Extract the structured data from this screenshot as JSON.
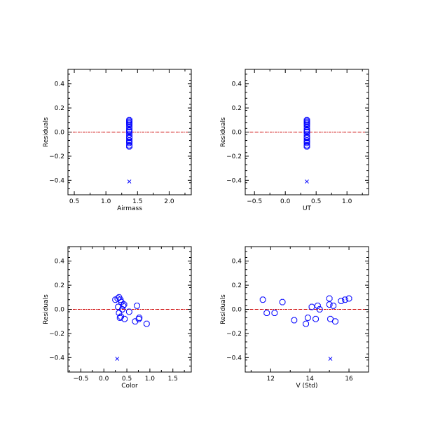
{
  "colors": {
    "marker": "#0000ff",
    "zero_line": "#cc0000",
    "axes": "#000000"
  },
  "chart_data": [
    {
      "type": "scatter",
      "xlabel": "Airmass",
      "ylabel": "Residuals",
      "xlim": [
        0.4,
        2.35
      ],
      "ylim": [
        -0.52,
        0.52
      ],
      "xticks": [
        0.5,
        1.0,
        1.5,
        2.0
      ],
      "xtick_labels": [
        "0.5",
        "1.0",
        "1.5",
        "2.0"
      ],
      "yticks": [
        -0.4,
        -0.2,
        0.0,
        0.2,
        0.4
      ],
      "ytick_labels": [
        "−0.4",
        "−0.2",
        "0.0",
        "0.2",
        "0.4"
      ],
      "zero_line": 0.0,
      "points": [
        {
          "x": 1.37,
          "y": 0.1
        },
        {
          "x": 1.37,
          "y": 0.09
        },
        {
          "x": 1.37,
          "y": 0.08
        },
        {
          "x": 1.37,
          "y": 0.07
        },
        {
          "x": 1.37,
          "y": 0.06
        },
        {
          "x": 1.37,
          "y": 0.04
        },
        {
          "x": 1.37,
          "y": 0.02
        },
        {
          "x": 1.37,
          "y": 0.01
        },
        {
          "x": 1.37,
          "y": 0.0
        },
        {
          "x": 1.37,
          "y": -0.02
        },
        {
          "x": 1.37,
          "y": -0.04
        },
        {
          "x": 1.37,
          "y": -0.05
        },
        {
          "x": 1.37,
          "y": -0.07
        },
        {
          "x": 1.37,
          "y": -0.08
        },
        {
          "x": 1.37,
          "y": -0.09
        },
        {
          "x": 1.37,
          "y": -0.11
        },
        {
          "x": 1.37,
          "y": -0.12
        }
      ],
      "outliers": [
        {
          "x": 1.37,
          "y": -0.41
        }
      ]
    },
    {
      "type": "scatter",
      "xlabel": "UT",
      "ylabel": "Residuals",
      "xlim": [
        -0.65,
        1.35
      ],
      "ylim": [
        -0.52,
        0.52
      ],
      "xticks": [
        -0.5,
        0.0,
        0.5,
        1.0
      ],
      "xtick_labels": [
        "−0.5",
        "0.0",
        "0.5",
        "1.0"
      ],
      "yticks": [
        -0.4,
        -0.2,
        0.0,
        0.2,
        0.4
      ],
      "ytick_labels": [
        "−0.4",
        "−0.2",
        "0.0",
        "0.2",
        "0.4"
      ],
      "zero_line": 0.0,
      "points": [
        {
          "x": 0.35,
          "y": 0.1
        },
        {
          "x": 0.35,
          "y": 0.09
        },
        {
          "x": 0.35,
          "y": 0.08
        },
        {
          "x": 0.35,
          "y": 0.07
        },
        {
          "x": 0.35,
          "y": 0.06
        },
        {
          "x": 0.35,
          "y": 0.04
        },
        {
          "x": 0.35,
          "y": 0.02
        },
        {
          "x": 0.35,
          "y": 0.01
        },
        {
          "x": 0.35,
          "y": 0.0
        },
        {
          "x": 0.35,
          "y": -0.02
        },
        {
          "x": 0.35,
          "y": -0.04
        },
        {
          "x": 0.35,
          "y": -0.05
        },
        {
          "x": 0.35,
          "y": -0.07
        },
        {
          "x": 0.35,
          "y": -0.08
        },
        {
          "x": 0.35,
          "y": -0.09
        },
        {
          "x": 0.35,
          "y": -0.11
        },
        {
          "x": 0.35,
          "y": -0.12
        }
      ],
      "outliers": [
        {
          "x": 0.35,
          "y": -0.41
        }
      ]
    },
    {
      "type": "scatter",
      "xlabel": "Color",
      "ylabel": "Residuals",
      "xlim": [
        -0.78,
        1.9
      ],
      "ylim": [
        -0.52,
        0.52
      ],
      "xticks": [
        -0.5,
        0.0,
        0.5,
        1.0,
        1.5
      ],
      "xtick_labels": [
        "−0.5",
        "0.0",
        "0.5",
        "1.0",
        "1.5"
      ],
      "yticks": [
        -0.4,
        -0.2,
        0.0,
        0.2,
        0.4
      ],
      "ytick_labels": [
        "−0.4",
        "−0.2",
        "0.0",
        "0.2",
        "0.4"
      ],
      "zero_line": 0.0,
      "points": [
        {
          "x": 0.25,
          "y": 0.08
        },
        {
          "x": 0.3,
          "y": 0.09
        },
        {
          "x": 0.33,
          "y": 0.1
        },
        {
          "x": 0.36,
          "y": 0.08
        },
        {
          "x": 0.38,
          "y": 0.06
        },
        {
          "x": 0.31,
          "y": 0.02
        },
        {
          "x": 0.42,
          "y": 0.03
        },
        {
          "x": 0.44,
          "y": 0.04
        },
        {
          "x": 0.33,
          "y": -0.03
        },
        {
          "x": 0.37,
          "y": -0.06
        },
        {
          "x": 0.4,
          "y": 0.0
        },
        {
          "x": 0.35,
          "y": -0.07
        },
        {
          "x": 0.45,
          "y": -0.08
        },
        {
          "x": 0.55,
          "y": -0.02
        },
        {
          "x": 0.68,
          "y": -0.1
        },
        {
          "x": 0.72,
          "y": 0.03
        },
        {
          "x": 0.76,
          "y": -0.08
        },
        {
          "x": 0.77,
          "y": -0.07
        },
        {
          "x": 0.93,
          "y": -0.12
        }
      ],
      "outliers": [
        {
          "x": 0.29,
          "y": -0.41
        }
      ]
    },
    {
      "type": "scatter",
      "xlabel": "V (Std)",
      "ylabel": "Residuals",
      "xlim": [
        10.7,
        17.0
      ],
      "ylim": [
        -0.52,
        0.52
      ],
      "xticks": [
        12,
        14,
        16
      ],
      "xtick_labels": [
        "12",
        "14",
        "16"
      ],
      "yticks": [
        -0.4,
        -0.2,
        0.0,
        0.2,
        0.4
      ],
      "ytick_labels": [
        "−0.4",
        "−0.2",
        "0.0",
        "0.2",
        "0.4"
      ],
      "zero_line": 0.0,
      "points": [
        {
          "x": 11.6,
          "y": 0.08
        },
        {
          "x": 11.8,
          "y": -0.03
        },
        {
          "x": 12.2,
          "y": -0.03
        },
        {
          "x": 12.6,
          "y": 0.06
        },
        {
          "x": 13.2,
          "y": -0.09
        },
        {
          "x": 13.8,
          "y": -0.12
        },
        {
          "x": 13.9,
          "y": -0.07
        },
        {
          "x": 14.1,
          "y": 0.02
        },
        {
          "x": 14.3,
          "y": -0.08
        },
        {
          "x": 14.4,
          "y": 0.03
        },
        {
          "x": 14.5,
          "y": 0.0
        },
        {
          "x": 15.0,
          "y": 0.09
        },
        {
          "x": 15.0,
          "y": 0.04
        },
        {
          "x": 15.05,
          "y": -0.08
        },
        {
          "x": 15.2,
          "y": 0.03
        },
        {
          "x": 15.3,
          "y": -0.1
        },
        {
          "x": 15.6,
          "y": 0.07
        },
        {
          "x": 15.8,
          "y": 0.08
        },
        {
          "x": 16.0,
          "y": 0.09
        }
      ],
      "outliers": [
        {
          "x": 15.05,
          "y": -0.41
        }
      ]
    }
  ]
}
